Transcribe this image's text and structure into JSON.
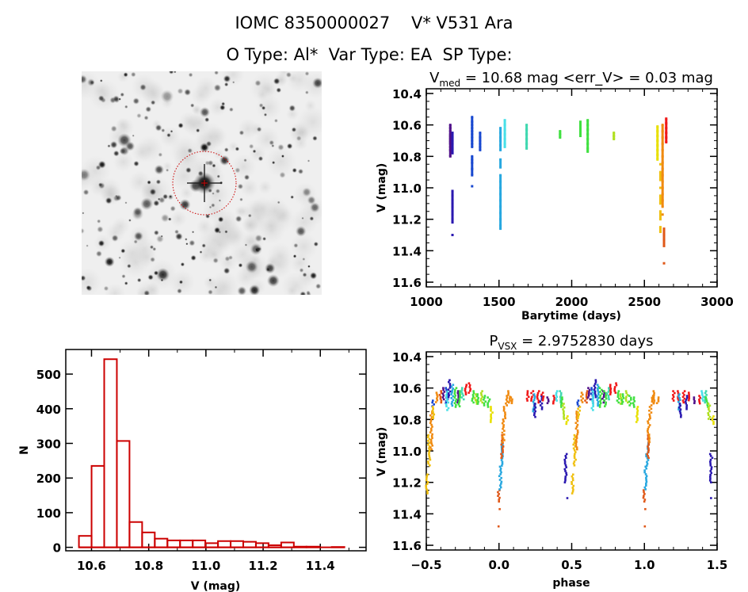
{
  "header": {
    "title_line1": "IOMC 8350000027    V* V531 Ara",
    "title_line2": "O Type: Al*  Var Type: EA  SP Type:"
  },
  "palette": [
    "#50108a",
    "#2a18b0",
    "#1848d0",
    "#28a8e0",
    "#48e0e8",
    "#40d8b0",
    "#40e040",
    "#b0e020",
    "#e8e000",
    "#f0c010",
    "#f08a10",
    "#e05818",
    "#f01818"
  ],
  "chart_data": [
    {
      "type": "image",
      "description_label": "",
      "marker_color": "#cc0000"
    },
    {
      "type": "scatter",
      "title_main": "V",
      "title_sub": "med",
      "title_rest": " = 10.68 mag <err_V> = 0.03 mag",
      "xlabel": "Barytime (days)",
      "ylabel": "V (mag)",
      "xlim": [
        1000,
        3000
      ],
      "ylim": [
        11.63,
        10.37
      ],
      "y_inverted": true,
      "xticks": [
        "1000",
        "1500",
        "2000",
        "2500",
        "3000"
      ],
      "yticks": [
        "10.4",
        "10.6",
        "10.8",
        "11.0",
        "11.2",
        "11.4",
        "11.6"
      ],
      "seasons": [
        {
          "t": 1165,
          "c": 0,
          "mags": [
            10.6,
            10.62,
            10.64,
            10.66,
            10.67,
            10.68,
            10.69,
            10.7,
            10.71,
            10.72,
            10.74,
            10.76,
            10.8
          ]
        },
        {
          "t": 1180,
          "c": 1,
          "mags": [
            10.65,
            10.68,
            10.7,
            10.72,
            10.75,
            10.78,
            11.02,
            11.05,
            11.08,
            11.1,
            11.12,
            11.15,
            11.17,
            11.2,
            11.22,
            11.3
          ]
        },
        {
          "t": 1315,
          "c": 2,
          "mags": [
            10.55,
            10.58,
            10.6,
            10.62,
            10.64,
            10.66,
            10.68,
            10.7,
            10.72,
            10.74,
            10.8,
            10.82,
            10.84,
            10.88,
            10.92,
            10.99
          ]
        },
        {
          "t": 1370,
          "c": 2,
          "mags": [
            10.65,
            10.68,
            10.7,
            10.72,
            10.74,
            10.76
          ]
        },
        {
          "t": 1510,
          "c": 3,
          "mags": [
            10.62,
            10.65,
            10.68,
            10.7,
            10.73,
            10.76,
            10.82,
            10.87,
            10.92,
            10.96,
            11.0,
            11.04,
            11.08,
            11.12,
            11.16,
            11.2,
            11.24,
            11.26
          ]
        },
        {
          "t": 1540,
          "c": 4,
          "mags": [
            10.57,
            10.6,
            10.63,
            10.66,
            10.69,
            10.72,
            10.74
          ]
        },
        {
          "t": 1690,
          "c": 5,
          "mags": [
            10.6,
            10.63,
            10.66,
            10.69,
            10.72,
            10.75
          ]
        },
        {
          "t": 1920,
          "c": 6,
          "mags": [
            10.64,
            10.66,
            10.68
          ]
        },
        {
          "t": 2060,
          "c": 6,
          "mags": [
            10.58,
            10.6,
            10.62,
            10.65,
            10.67
          ]
        },
        {
          "t": 2110,
          "c": 6,
          "mags": [
            10.57,
            10.6,
            10.63,
            10.66,
            10.69,
            10.72,
            10.75,
            10.77
          ]
        },
        {
          "t": 2290,
          "c": 7,
          "mags": [
            10.65,
            10.67,
            10.69
          ]
        },
        {
          "t": 2590,
          "c": 8,
          "mags": [
            10.61,
            10.64,
            10.67,
            10.7,
            10.73,
            10.76,
            10.79,
            10.82
          ]
        },
        {
          "t": 2610,
          "c": 9,
          "mags": [
            10.85,
            10.9,
            10.95,
            11.0,
            11.05,
            11.1,
            11.15,
            11.2,
            11.25,
            11.28
          ]
        },
        {
          "t": 2625,
          "c": 10,
          "mags": [
            10.6,
            10.64,
            10.68,
            10.72,
            10.76,
            10.8,
            10.84,
            10.88,
            10.92,
            10.96,
            11.0,
            11.04,
            11.08,
            11.12,
            11.17
          ]
        },
        {
          "t": 2635,
          "c": 11,
          "mags": [
            11.26,
            11.3,
            11.33,
            11.37,
            11.48
          ]
        },
        {
          "t": 2650,
          "c": 12,
          "mags": [
            10.56,
            10.59,
            10.62,
            10.65,
            10.68,
            10.71
          ]
        }
      ]
    },
    {
      "type": "bar",
      "xlabel": "V (mag)",
      "ylabel": "N",
      "xlim": [
        10.51,
        11.56
      ],
      "ylim": [
        -10,
        571
      ],
      "xticks": [
        "10.6",
        "10.8",
        "11.0",
        "11.2",
        "11.4"
      ],
      "yticks": [
        "0",
        "100",
        "200",
        "300",
        "400",
        "500"
      ],
      "bin_start": 10.556,
      "bin_width": 0.0442,
      "values": [
        33,
        235,
        543,
        307,
        73,
        43,
        25,
        20,
        20,
        20,
        12,
        18,
        18,
        16,
        12,
        6,
        14,
        2,
        2,
        0,
        1
      ],
      "color": "#cc0000"
    },
    {
      "type": "scatter",
      "title_main": "P",
      "title_sub": "VSX",
      "title_rest": " = 2.9752830 days",
      "xlabel": "phase",
      "ylabel": "V (mag)",
      "xlim": [
        -0.5,
        1.5
      ],
      "ylim": [
        11.63,
        10.37
      ],
      "y_inverted": true,
      "xticks": [
        "-0.5",
        "0.0",
        "0.5",
        "1.0",
        "1.5"
      ],
      "yticks": [
        "10.4",
        "10.6",
        "10.8",
        "11.0",
        "11.2",
        "11.4",
        "11.6"
      ],
      "phase_groups": [
        [
          0.0,
          11.25,
          11.33,
          11
        ],
        [
          0.0,
          11.37,
          11.37,
          11
        ],
        [
          0.0,
          11.48,
          11.48,
          11
        ],
        [
          0.01,
          11.1,
          11.25,
          3
        ],
        [
          0.02,
          10.95,
          11.1,
          3
        ],
        [
          0.022,
          10.9,
          11.05,
          11
        ],
        [
          0.03,
          10.8,
          10.95,
          10
        ],
        [
          0.04,
          10.72,
          10.8,
          10
        ],
        [
          0.055,
          10.65,
          10.72,
          10
        ],
        [
          0.07,
          10.62,
          10.7,
          10
        ],
        [
          0.09,
          10.66,
          10.7,
          10
        ],
        [
          0.2,
          10.62,
          10.68,
          12
        ],
        [
          0.23,
          10.62,
          10.68,
          12
        ],
        [
          0.24,
          10.64,
          10.75,
          3
        ],
        [
          0.245,
          10.7,
          10.79,
          1
        ],
        [
          0.27,
          10.62,
          10.7,
          12
        ],
        [
          0.29,
          10.65,
          10.74,
          1
        ],
        [
          0.3,
          10.63,
          10.68,
          12
        ],
        [
          0.34,
          10.66,
          10.7,
          0
        ],
        [
          0.38,
          10.65,
          10.7,
          12
        ],
        [
          0.4,
          10.62,
          10.68,
          4
        ],
        [
          0.42,
          10.62,
          10.7,
          5
        ],
        [
          0.43,
          10.66,
          10.72,
          6
        ],
        [
          0.445,
          10.7,
          10.8,
          7
        ],
        [
          0.46,
          11.02,
          11.2,
          1
        ],
        [
          0.465,
          11.3,
          11.3,
          1
        ],
        [
          0.47,
          10.78,
          10.83,
          8
        ],
        [
          0.505,
          11.15,
          11.28,
          9
        ],
        [
          0.52,
          10.9,
          11.1,
          9
        ],
        [
          0.535,
          10.75,
          11.0,
          10
        ],
        [
          0.545,
          10.68,
          10.72,
          2
        ],
        [
          0.55,
          10.72,
          10.8,
          9
        ],
        [
          0.57,
          10.63,
          10.7,
          10
        ],
        [
          0.6,
          10.62,
          10.7,
          11
        ],
        [
          0.62,
          10.6,
          10.68,
          0
        ],
        [
          0.64,
          10.6,
          10.7,
          2
        ],
        [
          0.645,
          10.62,
          10.75,
          4
        ],
        [
          0.66,
          10.55,
          10.66,
          1
        ],
        [
          0.68,
          10.58,
          10.72,
          3
        ],
        [
          0.7,
          10.6,
          10.72,
          6
        ],
        [
          0.72,
          10.62,
          10.7,
          0
        ],
        [
          0.73,
          10.62,
          10.72,
          6
        ],
        [
          0.75,
          10.6,
          10.68,
          5
        ],
        [
          0.77,
          10.58,
          10.64,
          12
        ],
        [
          0.8,
          10.57,
          10.64,
          12
        ],
        [
          0.82,
          10.62,
          10.7,
          6
        ],
        [
          0.84,
          10.64,
          10.7,
          7
        ],
        [
          0.85,
          10.64,
          10.7,
          6
        ],
        [
          0.88,
          10.62,
          10.7,
          7
        ],
        [
          0.9,
          10.65,
          10.72,
          6
        ],
        [
          0.93,
          10.66,
          10.72,
          6
        ],
        [
          0.95,
          10.72,
          10.82,
          8
        ]
      ]
    }
  ]
}
